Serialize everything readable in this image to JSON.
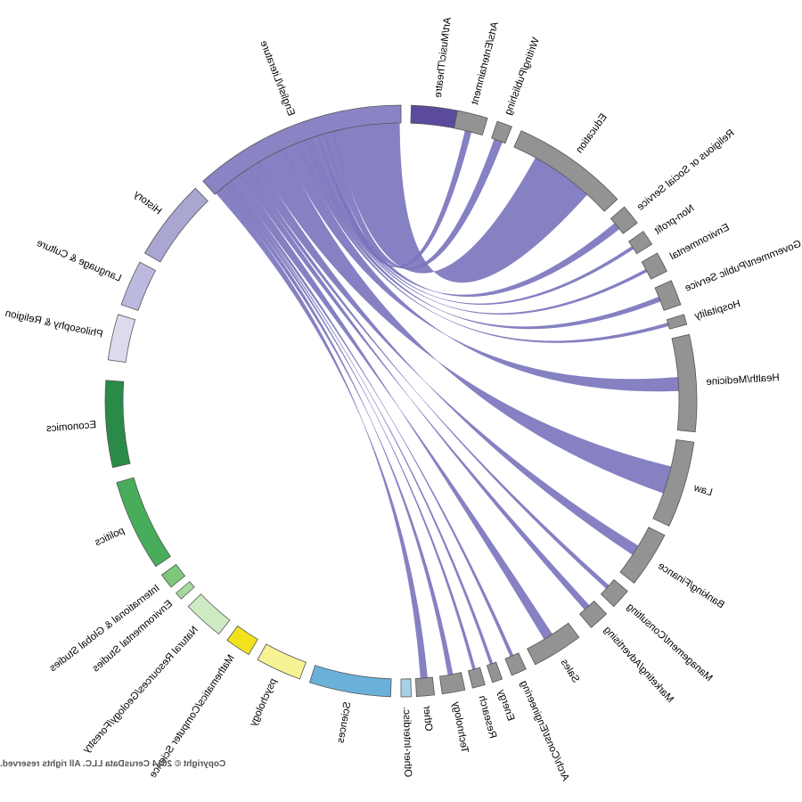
{
  "chart": {
    "type": "chord",
    "source": "English/Literature",
    "ribbon_color": "#7b76be"
  },
  "arcs": [
    {
      "label": "Art/Music/Theatre",
      "color": "#5b4a9e",
      "start": -12,
      "end": -2
    },
    {
      "label": "English/Literature",
      "color": "#8a84c4",
      "start": 0,
      "end": 42
    },
    {
      "label": "History",
      "color": "#a9a6d2",
      "start": 44,
      "end": 60
    },
    {
      "label": "Language & Culture",
      "color": "#bbb9df",
      "start": 62,
      "end": 71
    },
    {
      "label": "Philosophy & Religion",
      "color": "#dcdbee",
      "start": 73,
      "end": 82
    },
    {
      "label": "Economics",
      "color": "#2a8a48",
      "start": 86,
      "end": 103
    },
    {
      "label": "politics",
      "color": "#47ad5b",
      "start": 106,
      "end": 124
    },
    {
      "label": "International & Global Studies",
      "color": "#7cc87b",
      "start": 126,
      "end": 129
    },
    {
      "label": "Environmental Studies",
      "color": "#a7d9a0",
      "start": 130.5,
      "end": 132
    },
    {
      "label": "Natural Resources/Geology/Forestry",
      "color": "#cdeac2",
      "start": 134,
      "end": 142
    },
    {
      "label": "Mathematics/Computer Science",
      "color": "#f1e21c",
      "start": 144,
      "end": 149
    },
    {
      "label": "psychology",
      "color": "#f7f294",
      "start": 151,
      "end": 160
    },
    {
      "label": "Sciences",
      "color": "#6ab1da",
      "start": 162,
      "end": 178
    },
    {
      "label": "Other-Interdisc.",
      "color": "#a9d0ea",
      "start": 180,
      "end": 182
    },
    {
      "label": "Other",
      "color": "#939393",
      "start": 183,
      "end": 186.5
    },
    {
      "label": "Technology",
      "color": "#939393",
      "start": 188,
      "end": 192.5
    },
    {
      "label": "Research",
      "color": "#939393",
      "start": 194,
      "end": 196.5
    },
    {
      "label": "Energy",
      "color": "#939393",
      "start": 198,
      "end": 200
    },
    {
      "label": "Arch/Const/Engineering",
      "color": "#939393",
      "start": 202,
      "end": 205
    },
    {
      "label": "Sales",
      "color": "#939393",
      "start": 207,
      "end": 217
    },
    {
      "label": "Marketing/Advertising",
      "color": "#939393",
      "start": 220,
      "end": 224
    },
    {
      "label": "Management/Consulting",
      "color": "#939393",
      "start": 226,
      "end": 230
    },
    {
      "label": "Banking/Finance",
      "color": "#939393",
      "start": 232,
      "end": 243
    },
    {
      "label": "Law",
      "color": "#939393",
      "start": 245,
      "end": 262
    },
    {
      "label": "Health/Medicine",
      "color": "#939393",
      "start": 264,
      "end": 283
    },
    {
      "label": "Hospitality",
      "color": "#939393",
      "start": 285,
      "end": 287
    },
    {
      "label": "Government/Public Service",
      "color": "#939393",
      "start": 289,
      "end": 294
    },
    {
      "label": "Environmental",
      "color": "#939393",
      "start": 296,
      "end": 300
    },
    {
      "label": "Non-profit",
      "color": "#939393",
      "start": 302,
      "end": 305
    },
    {
      "label": "Religious or Social Service",
      "color": "#939393",
      "start": 307,
      "end": 311
    },
    {
      "label": "Education",
      "color": "#939393",
      "start": 313,
      "end": 336
    },
    {
      "label": "Writing/Publishing",
      "color": "#939393",
      "start": 338,
      "end": 341
    },
    {
      "label": "Arts/Entertainment",
      "color": "#939393",
      "start": 343,
      "end": 349
    }
  ],
  "flows": [
    {
      "target": "Education",
      "value": 12
    },
    {
      "target": "Writing/Publishing",
      "value": 1.6
    },
    {
      "target": "Arts/Entertainment",
      "value": 1.2
    },
    {
      "target": "Religious or Social Service",
      "value": 1.4
    },
    {
      "target": "Non-profit",
      "value": 0.6
    },
    {
      "target": "Environmental",
      "value": 0.5
    },
    {
      "target": "Government/Public Service",
      "value": 0.9
    },
    {
      "target": "Hospitality",
      "value": 0.6
    },
    {
      "target": "Health/Medicine",
      "value": 2.6
    },
    {
      "target": "Law",
      "value": 5.2
    },
    {
      "target": "Banking/Finance",
      "value": 2.0
    },
    {
      "target": "Management/Consulting",
      "value": 0.8
    },
    {
      "target": "Marketing/Advertising",
      "value": 1.2
    },
    {
      "target": "Sales",
      "value": 1.8
    },
    {
      "target": "Arch/Const/Engineering",
      "value": 0.6
    },
    {
      "target": "Energy",
      "value": 0.3
    },
    {
      "target": "Research",
      "value": 0.5
    },
    {
      "target": "Technology",
      "value": 0.9
    },
    {
      "target": "Other",
      "value": 1.3
    }
  ],
  "copyright": "Copyright © 2014 CerusData LLC.  All rights reserved."
}
